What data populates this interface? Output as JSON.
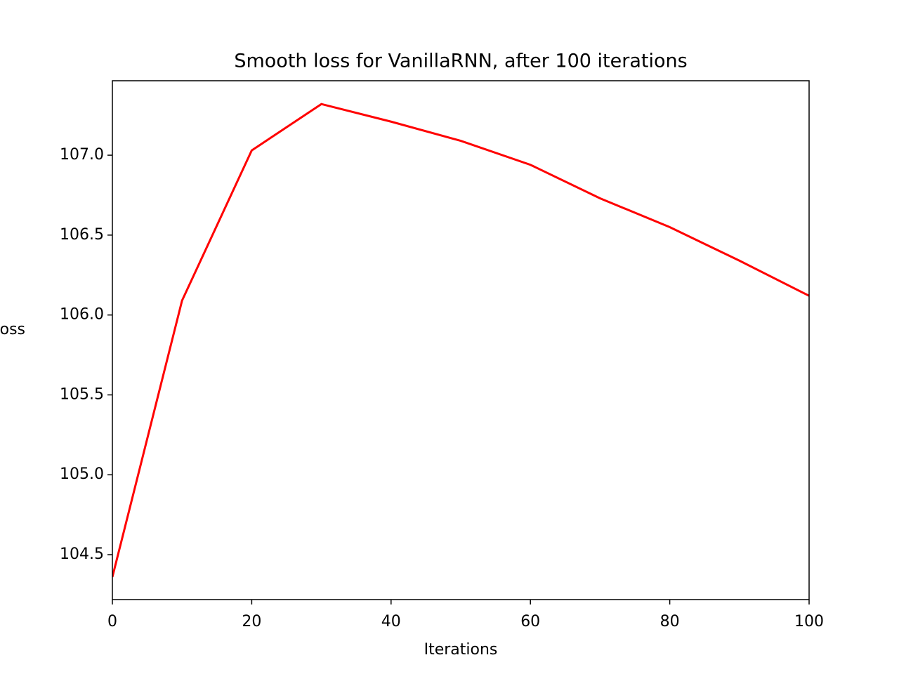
{
  "chart_data": {
    "type": "line",
    "title": "Smooth loss for VanillaRNN, after 100 iterations",
    "x_label": "Iterations",
    "y_label": "Loss",
    "x": [
      0,
      10,
      20,
      30,
      40,
      50,
      60,
      70,
      80,
      90,
      100
    ],
    "series": [
      {
        "name": "Smooth loss",
        "color": "#ff0000",
        "values": [
          104.36,
          106.09,
          107.03,
          107.32,
          107.21,
          107.09,
          106.94,
          106.73,
          106.55,
          106.34,
          106.12
        ]
      }
    ],
    "xlim": [
      0,
      100
    ],
    "xticks": [
      0,
      20,
      40,
      60,
      80,
      100
    ],
    "ylim": [
      104.219,
      107.466
    ],
    "yticks": [
      104.5,
      {
        "value": 105,
        "label": "105.0"
      },
      105.5,
      {
        "value": 106,
        "label": "106.0"
      },
      106.5,
      {
        "value": 107,
        "label": "107.0"
      }
    ],
    "grid": false
  }
}
